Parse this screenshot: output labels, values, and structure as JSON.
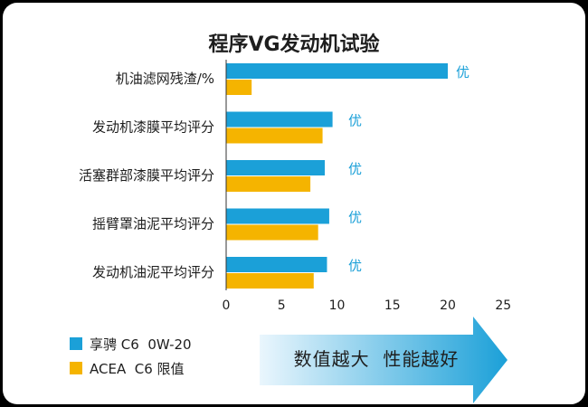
{
  "chart_data": {
    "type": "bar",
    "orientation": "horizontal",
    "title": "程序VG发动机试验",
    "categories": [
      "机油滤网残渣/%",
      "发动机漆膜平均评分",
      "活塞群部漆膜平均评分",
      "摇臂罩油泥平均评分",
      "发动机油泥平均评分"
    ],
    "series": [
      {
        "name": "享骋 C6  0W-20",
        "color": "#1ba0d8",
        "values": [
          20,
          9.6,
          8.9,
          9.3,
          9.1
        ]
      },
      {
        "name": "ACEA  C6 限值",
        "color": "#f5b400",
        "values": [
          2.3,
          8.7,
          7.6,
          8.3,
          7.9
        ]
      }
    ],
    "data_labels": [
      "优",
      "优",
      "优",
      "优",
      "优"
    ],
    "data_label_color": "#1ba0d8",
    "xlim": [
      0,
      25
    ],
    "xticks": [
      0,
      5,
      10,
      15,
      20,
      25
    ],
    "grid": false,
    "legend_position": "bottom-left"
  },
  "annotation": {
    "text": "数值越大  性能越好",
    "gradient_start": "#eaf6fd",
    "gradient_end": "#1ba0d8"
  }
}
